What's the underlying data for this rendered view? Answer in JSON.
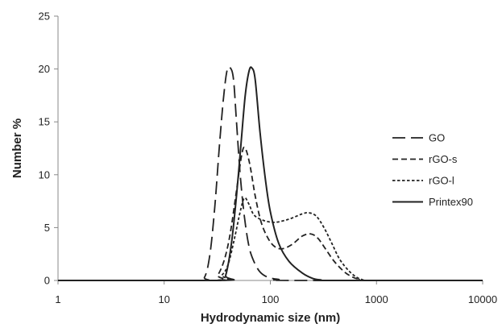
{
  "chart_data": {
    "type": "line",
    "xlabel": "Hydrodynamic size (nm)",
    "ylabel": "Number %",
    "xscale": "log",
    "xlim": [
      1,
      10000
    ],
    "ylim": [
      0,
      25
    ],
    "x_ticks": [
      "1",
      "10",
      "100",
      "1000",
      "10000"
    ],
    "y_ticks": [
      "0",
      "5",
      "10",
      "15",
      "20",
      "25"
    ],
    "grid": false,
    "legend_position": "right",
    "series": [
      {
        "name": "GO",
        "dash": "long-dash",
        "color": "#222222",
        "points": [
          [
            1,
            0
          ],
          [
            20,
            0
          ],
          [
            24,
            0.3
          ],
          [
            27,
            2.5
          ],
          [
            30,
            7
          ],
          [
            33,
            12.5
          ],
          [
            36,
            17
          ],
          [
            39,
            19.8
          ],
          [
            42,
            20.1
          ],
          [
            45,
            19
          ],
          [
            48,
            15
          ],
          [
            52,
            10
          ],
          [
            57,
            6
          ],
          [
            63,
            3.2
          ],
          [
            70,
            1.8
          ],
          [
            80,
            0.8
          ],
          [
            95,
            0.3
          ],
          [
            120,
            0.1
          ],
          [
            150,
            0
          ],
          [
            10000,
            0
          ]
        ]
      },
      {
        "name": "rGO-s",
        "dash": "dash",
        "color": "#222222",
        "points": [
          [
            1,
            0
          ],
          [
            28,
            0
          ],
          [
            32,
            0.5
          ],
          [
            37,
            2
          ],
          [
            42,
            4.5
          ],
          [
            48,
            8.5
          ],
          [
            54,
            12
          ],
          [
            58,
            12.5
          ],
          [
            64,
            11
          ],
          [
            72,
            8
          ],
          [
            82,
            5.5
          ],
          [
            95,
            4
          ],
          [
            110,
            3.2
          ],
          [
            130,
            3
          ],
          [
            160,
            3.4
          ],
          [
            200,
            4.2
          ],
          [
            240,
            4.4
          ],
          [
            280,
            4
          ],
          [
            330,
            3
          ],
          [
            400,
            1.8
          ],
          [
            500,
            0.8
          ],
          [
            600,
            0.3
          ],
          [
            700,
            0.1
          ],
          [
            850,
            0
          ],
          [
            10000,
            0
          ]
        ]
      },
      {
        "name": "rGO-l",
        "dash": "dot",
        "color": "#222222",
        "points": [
          [
            1,
            0
          ],
          [
            30,
            0
          ],
          [
            35,
            0.5
          ],
          [
            40,
            1.5
          ],
          [
            46,
            4
          ],
          [
            52,
            6.5
          ],
          [
            57,
            7.8
          ],
          [
            63,
            7.2
          ],
          [
            70,
            6.2
          ],
          [
            85,
            5.7
          ],
          [
            110,
            5.5
          ],
          [
            150,
            5.8
          ],
          [
            200,
            6.3
          ],
          [
            230,
            6.4
          ],
          [
            270,
            6.1
          ],
          [
            320,
            5
          ],
          [
            380,
            3.5
          ],
          [
            450,
            2
          ],
          [
            550,
            0.9
          ],
          [
            650,
            0.3
          ],
          [
            750,
            0.05
          ],
          [
            850,
            0
          ],
          [
            10000,
            0
          ]
        ]
      },
      {
        "name": "Printex90",
        "dash": "solid",
        "color": "#222222",
        "points": [
          [
            1,
            0
          ],
          [
            34,
            0
          ],
          [
            38,
            0.5
          ],
          [
            43,
            3.5
          ],
          [
            48,
            8
          ],
          [
            53,
            13
          ],
          [
            58,
            17.5
          ],
          [
            63,
            19.8
          ],
          [
            67,
            20.1
          ],
          [
            72,
            19
          ],
          [
            80,
            14
          ],
          [
            90,
            9.5
          ],
          [
            100,
            6.5
          ],
          [
            120,
            3.5
          ],
          [
            150,
            1.8
          ],
          [
            200,
            0.7
          ],
          [
            250,
            0.2
          ],
          [
            300,
            0.05
          ],
          [
            350,
            0
          ],
          [
            10000,
            0
          ]
        ]
      }
    ]
  }
}
